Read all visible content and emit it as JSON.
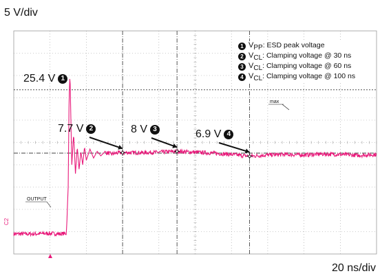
{
  "scale": {
    "vertical": "5 V/div",
    "horizontal": "20 ns/div"
  },
  "markers": {
    "max": "max",
    "output": "OUTPUT",
    "channel": "C2"
  },
  "legend": [
    {
      "num": "1",
      "symbol": "V",
      "sub": "PP",
      "text": ": ESD peak voltage"
    },
    {
      "num": "2",
      "symbol": "V",
      "sub": "CL",
      "text": ": Clamping voltage @ 30 ns"
    },
    {
      "num": "3",
      "symbol": "V",
      "sub": "CL",
      "text": ": Clamping voltage @ 60 ns"
    },
    {
      "num": "4",
      "symbol": "V",
      "sub": "CL",
      "text": ": Clamping voltage @ 100 ns"
    }
  ],
  "annotations": [
    {
      "text": "25.4  V",
      "num": "1"
    },
    {
      "text": "7.7  V",
      "num": "2"
    },
    {
      "text": "8 V",
      "num": "3"
    },
    {
      "text": "6.9 V",
      "num": "4"
    }
  ],
  "colors": {
    "trace": "#e8197a",
    "grid": "#9a9a9a",
    "text": "#111111"
  },
  "chart_data": {
    "type": "line",
    "title": "",
    "xlabel": "",
    "ylabel": "",
    "x_unit_per_div": 20,
    "y_unit_per_div": 5,
    "xlim": [
      -30,
      170
    ],
    "ylim": [
      -15,
      35
    ],
    "grid": true,
    "series": [
      {
        "name": "",
        "x": [
          -30,
          -20,
          -10,
          -5,
          -1,
          0,
          0.5,
          1,
          1.5,
          2,
          3,
          4,
          5,
          6,
          7,
          8,
          9,
          10,
          12,
          14,
          16,
          18,
          20,
          24,
          28,
          30,
          40,
          50,
          60,
          70,
          80,
          90,
          100,
          110,
          120,
          130,
          140,
          150,
          160,
          170
        ],
        "y": [
          -10.5,
          -10.5,
          -10.4,
          -10.5,
          -10.4,
          0,
          20,
          25.4,
          15,
          5,
          12,
          3,
          9,
          4,
          8,
          5,
          9,
          6,
          8.5,
          6.5,
          8,
          7,
          7.8,
          7.4,
          7.7,
          7.7,
          7.7,
          7.8,
          8,
          7.8,
          7.6,
          7.3,
          6.9,
          7.2,
          7.3,
          7.2,
          7.4,
          7.3,
          7.1,
          7.3
        ]
      }
    ],
    "reference_lines": [
      {
        "label": "max",
        "y": 21.8
      },
      {
        "label": "",
        "y": 7.6
      }
    ],
    "points": [
      {
        "x": 0.5,
        "y": 25.4,
        "label": "25.4  V"
      },
      {
        "x": 30,
        "y": 7.7,
        "label": "7.7  V"
      },
      {
        "x": 60,
        "y": 8,
        "label": "8 V"
      },
      {
        "x": 100,
        "y": 6.9,
        "label": "6.9 V"
      }
    ]
  }
}
